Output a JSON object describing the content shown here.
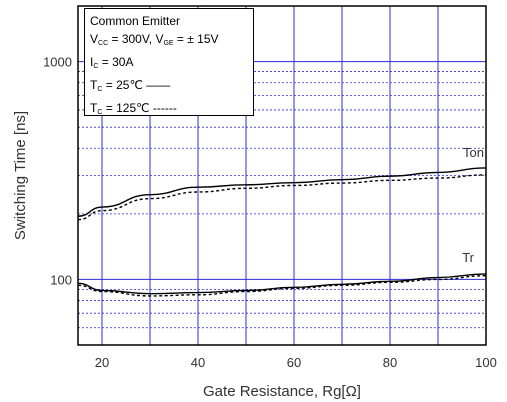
{
  "chart_data": {
    "type": "line",
    "xlabel": "Gate Resistance, Rg[Ω]",
    "ylabel": "Switching Time [ns]",
    "xlim": [
      15,
      100
    ],
    "ylim": [
      50,
      1800
    ],
    "yscale": "log",
    "grid": true,
    "x_ticks": [
      "20",
      "40",
      "60",
      "80",
      "100"
    ],
    "y_ticks": [
      "100",
      "1000"
    ],
    "legend_placement": "top-left",
    "conditions": {
      "title": "Common Emitter",
      "line2_vcc_label": "V",
      "line2_vcc_sub": "CC",
      "line2_vcc_value": "= 300V,",
      "line2_vge_label": "V",
      "line2_vge_sub": "GE",
      "line2_vge_value": "= ±  15V",
      "line3_ic_label": "I",
      "line3_ic_sub": "C",
      "line3_ic_value": "= 30A",
      "line4_tc_label": "T",
      "line4_tc_sub": "C",
      "line4_tc_value": "=   25℃ ——",
      "line5_tc_label": "T",
      "line5_tc_sub": "C",
      "line5_tc_value": "= 125℃ ------"
    },
    "curve_labels": {
      "ton": "Ton",
      "tr": "Tr"
    },
    "series": [
      {
        "curve": "Ton",
        "style": "solid",
        "temperature": "25℃",
        "x": [
          15,
          20,
          30,
          40,
          50,
          60,
          70,
          80,
          90,
          100
        ],
        "y": [
          195,
          215,
          245,
          265,
          272,
          278,
          287,
          298,
          310,
          325
        ]
      },
      {
        "curve": "Ton",
        "style": "dashed",
        "temperature": "125℃",
        "x": [
          15,
          20,
          30,
          40,
          50,
          60,
          70,
          80,
          90,
          100
        ],
        "y": [
          188,
          207,
          235,
          252,
          262,
          270,
          277,
          285,
          292,
          302
        ]
      },
      {
        "curve": "Tr",
        "style": "solid",
        "temperature": "25℃",
        "x": [
          15,
          20,
          30,
          40,
          50,
          60,
          70,
          80,
          90,
          100
        ],
        "y": [
          96,
          89,
          86,
          87,
          89,
          92,
          95,
          98,
          102,
          106
        ]
      },
      {
        "curve": "Tr",
        "style": "dashed",
        "temperature": "125℃",
        "x": [
          15,
          20,
          30,
          40,
          50,
          60,
          70,
          80,
          90,
          100
        ],
        "y": [
          94,
          88,
          84,
          85,
          88,
          91,
          94,
          97,
          100,
          104
        ]
      }
    ],
    "colors": {
      "grid": "#2b2bd6",
      "frame": "#000000",
      "curve": "#000000"
    }
  }
}
